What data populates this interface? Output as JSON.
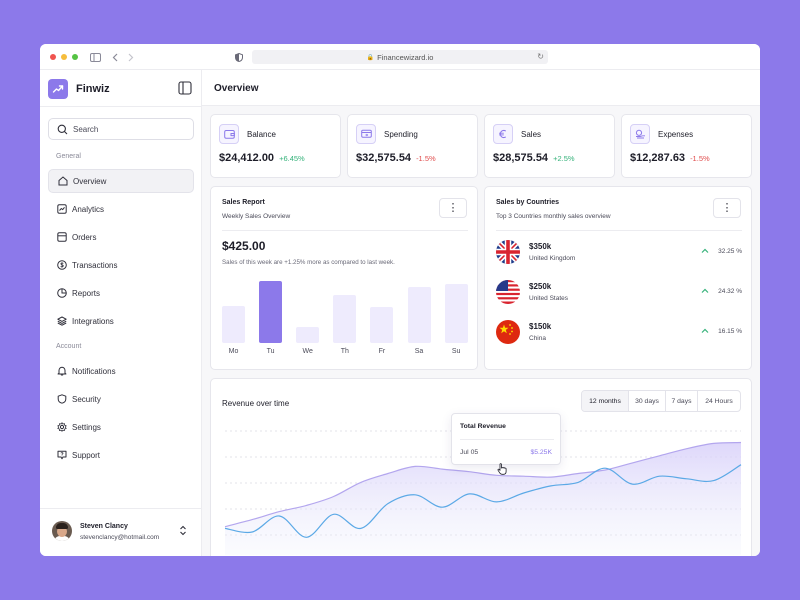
{
  "browser": {
    "url": "Financewizard.io"
  },
  "brand": {
    "name": "Finwiz"
  },
  "search": {
    "placeholder": "Search"
  },
  "sidebar": {
    "general_label": "General",
    "account_label": "Account",
    "general_items": [
      {
        "label": "Overview",
        "icon": "home-icon",
        "active": true
      },
      {
        "label": "Analytics",
        "icon": "analytics-icon"
      },
      {
        "label": "Orders",
        "icon": "orders-icon"
      },
      {
        "label": "Transactions",
        "icon": "dollar-icon"
      },
      {
        "label": "Reports",
        "icon": "pie-chart-icon"
      },
      {
        "label": "Integrations",
        "icon": "layers-icon"
      }
    ],
    "account_items": [
      {
        "label": "Notifications",
        "icon": "bell-icon"
      },
      {
        "label": "Security",
        "icon": "shield-icon"
      },
      {
        "label": "Settings",
        "icon": "gear-icon"
      },
      {
        "label": "Support",
        "icon": "help-icon"
      }
    ]
  },
  "user": {
    "name": "Steven Clancy",
    "email": "stevenclancy@hotmail.com"
  },
  "header": {
    "title": "Overview"
  },
  "stats": [
    {
      "title": "Balance",
      "value": "$24,412.00",
      "delta": "+6.45%",
      "trend": "up",
      "icon": "wallet-icon"
    },
    {
      "title": "Spending",
      "value": "$32,575.54",
      "delta": "-1.5%",
      "trend": "down",
      "icon": "card-icon"
    },
    {
      "title": "Sales",
      "value": "$28,575.54",
      "delta": "+2.5%",
      "trend": "up",
      "icon": "euro-icon"
    },
    {
      "title": "Expenses",
      "value": "$12,287.63",
      "delta": "-1.5%",
      "trend": "down",
      "icon": "coins-icon"
    }
  ],
  "sales_report": {
    "title": "Sales Report",
    "subtitle": "Weekly Sales Overview",
    "amount": "$425.00",
    "note": "Sales of this week are +1.25% more as compared to last week."
  },
  "sales_by_countries": {
    "title": "Sales by Countries",
    "subtitle": "Top 3 Countries monthly sales overview",
    "rows": [
      {
        "amount": "$350k",
        "country": "United Kingdom",
        "pct": "32.25 %",
        "flag": "uk-flag-icon"
      },
      {
        "amount": "$250k",
        "country": "United States",
        "pct": "24.32 %",
        "flag": "us-flag-icon"
      },
      {
        "amount": "$150k",
        "country": "China",
        "pct": "16.15 %",
        "flag": "china-flag-icon"
      }
    ]
  },
  "revenue": {
    "title": "Revenue over time",
    "ranges": [
      "12 months",
      "30 days",
      "7 days",
      "24 Hours"
    ],
    "active_range": "12 months",
    "tooltip": {
      "title": "Total Revenue",
      "date": "Jul 05",
      "value": "$5.25K"
    }
  },
  "colors": {
    "accent": "#8c79ea",
    "accent_light": "#eeebfd",
    "blue_line": "#5ba9e6",
    "positive": "#35b27a",
    "negative": "#e04d4d"
  },
  "chart_data": [
    {
      "type": "bar",
      "categories": [
        "Mo",
        "Tu",
        "We",
        "Th",
        "Fr",
        "Sa",
        "Su"
      ],
      "values": [
        37,
        62,
        16,
        48,
        36,
        56,
        59
      ],
      "highlight": "Tu",
      "ylim": [
        0,
        70
      ]
    },
    {
      "type": "area",
      "title": "Revenue over time",
      "series": [
        {
          "values": [
            32,
            40,
            49,
            56,
            66,
            82,
            92,
            100,
            97,
            94,
            90,
            89,
            88,
            92,
            96,
            104,
            112,
            120,
            126,
            127
          ]
        },
        {
          "values": [
            30,
            26,
            44,
            20,
            46,
            30,
            58,
            68,
            54,
            69,
            60,
            70,
            78,
            82,
            98,
            80,
            89,
            86,
            84,
            102
          ]
        }
      ],
      "grid": true,
      "ylim": [
        0,
        140
      ]
    }
  ]
}
